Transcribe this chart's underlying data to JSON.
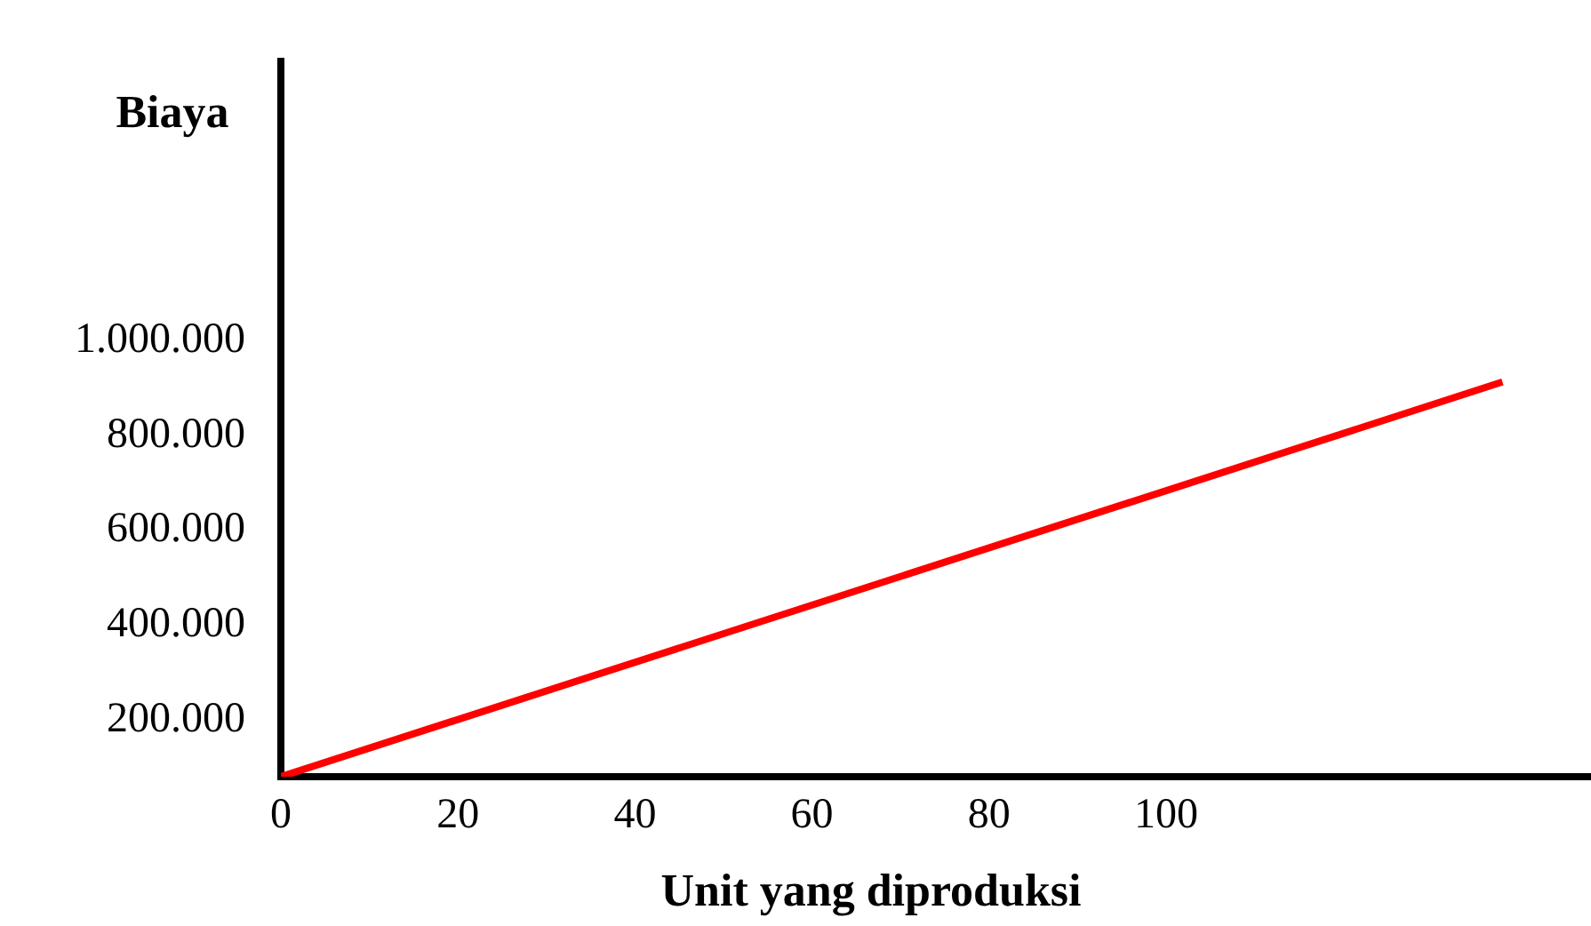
{
  "chart_data": {
    "type": "line",
    "xlabel": "Unit yang diproduksi",
    "ylabel": "Biaya",
    "x": [
      0,
      138
    ],
    "series": [
      {
        "color": "#ff0000",
        "values": [
          80000,
          913000
        ]
      }
    ],
    "xlim": [
      0,
      148
    ],
    "xticks": [
      0,
      20,
      40,
      60,
      80,
      100
    ],
    "ylim": [
      80000,
      1590000
    ],
    "yticks": [
      {
        "value": 200000,
        "label": "200.000"
      },
      {
        "value": 400000,
        "label": "400.000"
      },
      {
        "value": 600000,
        "label": "600.000"
      },
      {
        "value": 800000,
        "label": "800.000"
      },
      {
        "value": 1000000,
        "label": "1.000.000"
      }
    ],
    "grid": false,
    "legend": false,
    "marker": "none",
    "line_style": "solid"
  }
}
